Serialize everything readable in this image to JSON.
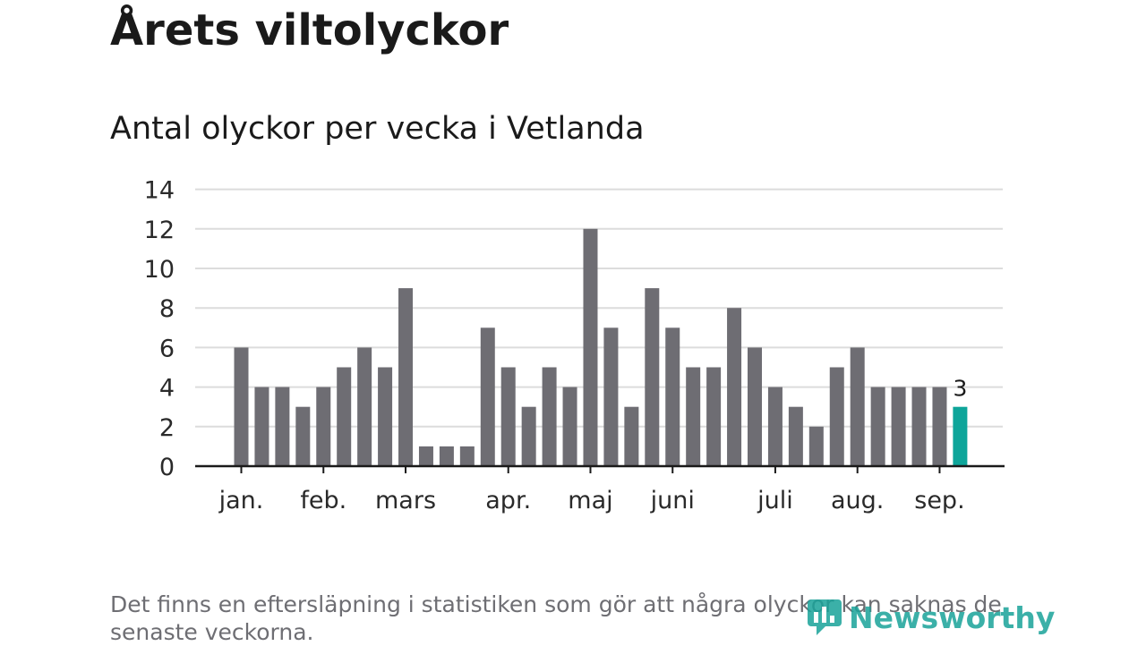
{
  "title": "Årets viltolyckor",
  "subtitle": "Antal olyckor per vecka i Vetlanda",
  "footnote": "Det finns en eftersläpning i statistiken som gör att några olyckor kan saknas de senaste veckorna.",
  "logo_text": "Newsworthy",
  "colors": {
    "bar": "#6e6d73",
    "highlight": "#0ea59a",
    "grid": "#dcdcdc",
    "axis": "#1a1a1a",
    "logo": "#1aa39a"
  },
  "chart_data": {
    "type": "bar",
    "title": "Antal olyckor per vecka i Vetlanda",
    "xlabel": "",
    "ylabel": "",
    "ylim": [
      0,
      14
    ],
    "yticks": [
      0,
      2,
      4,
      6,
      8,
      10,
      12,
      14
    ],
    "grid": true,
    "values": [
      6,
      4,
      4,
      3,
      4,
      5,
      6,
      5,
      9,
      1,
      1,
      1,
      7,
      5,
      3,
      5,
      4,
      12,
      7,
      3,
      9,
      7,
      5,
      5,
      8,
      6,
      4,
      3,
      2,
      5,
      6,
      4,
      4,
      4,
      4,
      3
    ],
    "highlight_index": 35,
    "highlight_label": "3",
    "month_labels": [
      {
        "label": "jan.",
        "week": 0
      },
      {
        "label": "feb.",
        "week": 4
      },
      {
        "label": "mars",
        "week": 8
      },
      {
        "label": "apr.",
        "week": 13
      },
      {
        "label": "maj",
        "week": 17
      },
      {
        "label": "juni",
        "week": 21
      },
      {
        "label": "juli",
        "week": 26
      },
      {
        "label": "aug.",
        "week": 30
      },
      {
        "label": "sep.",
        "week": 34
      }
    ]
  }
}
